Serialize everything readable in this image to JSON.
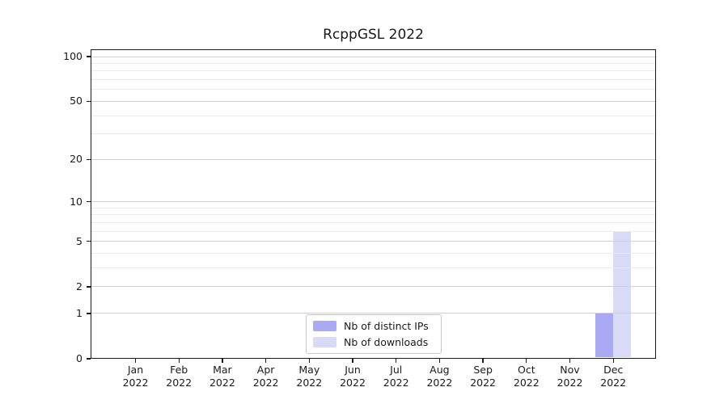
{
  "figure": {
    "background": "#ffffff"
  },
  "chart_data": {
    "type": "bar",
    "title": "RcppGSL 2022",
    "categories": [
      "Jan 2022",
      "Feb 2022",
      "Mar 2022",
      "Apr 2022",
      "May 2022",
      "Jun 2022",
      "Jul 2022",
      "Aug 2022",
      "Sep 2022",
      "Oct 2022",
      "Nov 2022",
      "Dec 2022"
    ],
    "series": [
      {
        "name": "Nb of distinct IPs",
        "color": "#a9a9f4",
        "values": [
          0,
          0,
          0,
          0,
          0,
          0,
          0,
          0,
          0,
          0,
          0,
          1
        ]
      },
      {
        "name": "Nb of downloads",
        "color": "#d9d9f8",
        "values": [
          0,
          0,
          0,
          0,
          0,
          0,
          0,
          0,
          0,
          0,
          0,
          6
        ]
      }
    ],
    "xlabel": "",
    "ylabel": "",
    "yaxis": {
      "scale": "log1p",
      "range": [
        0,
        100
      ],
      "ticks": [
        0,
        1,
        2,
        5,
        10,
        20,
        50,
        100
      ],
      "minor_gridlines": [
        3,
        4,
        6,
        7,
        8,
        9,
        30,
        40,
        60,
        70,
        80,
        90
      ]
    },
    "grid": true,
    "legend_position": "bottom-center"
  },
  "colors": {
    "major_grid": "#d0d0d0",
    "minor_grid": "#ececec",
    "axis": "#1a1a1a",
    "text": "#1a1a1a"
  }
}
